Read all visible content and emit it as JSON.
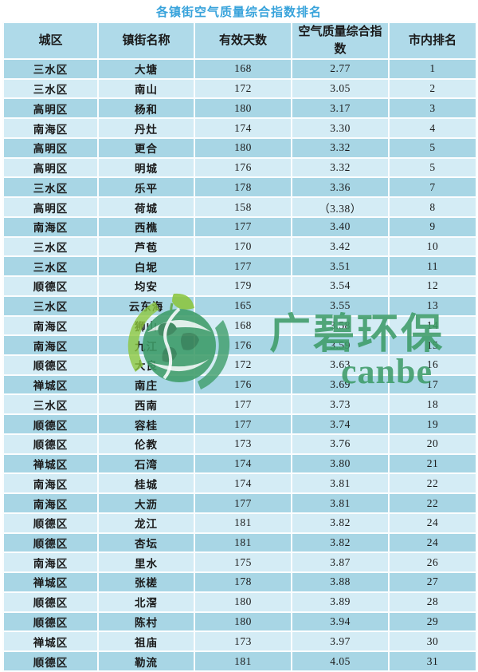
{
  "page": {
    "title": "各镇街空气质量综合指数排名"
  },
  "watermark": {
    "brand_cn": "广碧环保",
    "brand_en": "canbe",
    "logo": "globe-leaf-icon"
  },
  "colors": {
    "title": "#38A3DB",
    "header_bg": "#AFDAE9",
    "row_dark": "#A8D6E5",
    "row_light": "#D4ECF5",
    "text": "#1A1A1A",
    "brand_green": "#3E9C68",
    "leaf_light_green": "#8CC63E"
  },
  "chart_data": {
    "type": "table",
    "title": "各镇街空气质量综合指数排名",
    "columns": [
      "城区",
      "镇街名称",
      "有效天数",
      "空气质量综合指数",
      "市内排名"
    ],
    "rows": [
      [
        "三水区",
        "大塘",
        "168",
        "2.77",
        "1"
      ],
      [
        "三水区",
        "南山",
        "172",
        "3.05",
        "2"
      ],
      [
        "高明区",
        "杨和",
        "180",
        "3.17",
        "3"
      ],
      [
        "南海区",
        "丹灶",
        "174",
        "3.30",
        "4"
      ],
      [
        "高明区",
        "更合",
        "180",
        "3.32",
        "5"
      ],
      [
        "高明区",
        "明城",
        "176",
        "3.32",
        "5"
      ],
      [
        "三水区",
        "乐平",
        "178",
        "3.36",
        "7"
      ],
      [
        "高明区",
        "荷城",
        "158",
        "（3.38）",
        "8"
      ],
      [
        "南海区",
        "西樵",
        "177",
        "3.40",
        "9"
      ],
      [
        "三水区",
        "芦苞",
        "170",
        "3.42",
        "10"
      ],
      [
        "三水区",
        "白坭",
        "177",
        "3.51",
        "11"
      ],
      [
        "顺德区",
        "均安",
        "179",
        "3.54",
        "12"
      ],
      [
        "三水区",
        "云东海",
        "165",
        "3.55",
        "13"
      ],
      [
        "南海区",
        "狮山",
        "168",
        "3.58",
        "14"
      ],
      [
        "南海区",
        "九江",
        "176",
        "3.59",
        "15"
      ],
      [
        "顺德区",
        "大良",
        "172",
        "3.63",
        "16"
      ],
      [
        "禅城区",
        "南庄",
        "176",
        "3.69",
        "17"
      ],
      [
        "三水区",
        "西南",
        "177",
        "3.73",
        "18"
      ],
      [
        "顺德区",
        "容桂",
        "177",
        "3.74",
        "19"
      ],
      [
        "顺德区",
        "伦教",
        "173",
        "3.76",
        "20"
      ],
      [
        "禅城区",
        "石湾",
        "174",
        "3.80",
        "21"
      ],
      [
        "南海区",
        "桂城",
        "174",
        "3.81",
        "22"
      ],
      [
        "南海区",
        "大沥",
        "177",
        "3.81",
        "22"
      ],
      [
        "顺德区",
        "龙江",
        "181",
        "3.82",
        "24"
      ],
      [
        "顺德区",
        "杏坛",
        "181",
        "3.82",
        "24"
      ],
      [
        "南海区",
        "里水",
        "175",
        "3.87",
        "26"
      ],
      [
        "禅城区",
        "张槎",
        "178",
        "3.88",
        "27"
      ],
      [
        "顺德区",
        "北滘",
        "180",
        "3.89",
        "28"
      ],
      [
        "顺德区",
        "陈村",
        "180",
        "3.94",
        "29"
      ],
      [
        "禅城区",
        "祖庙",
        "173",
        "3.97",
        "30"
      ],
      [
        "顺德区",
        "勒流",
        "181",
        "4.05",
        "31"
      ]
    ]
  }
}
